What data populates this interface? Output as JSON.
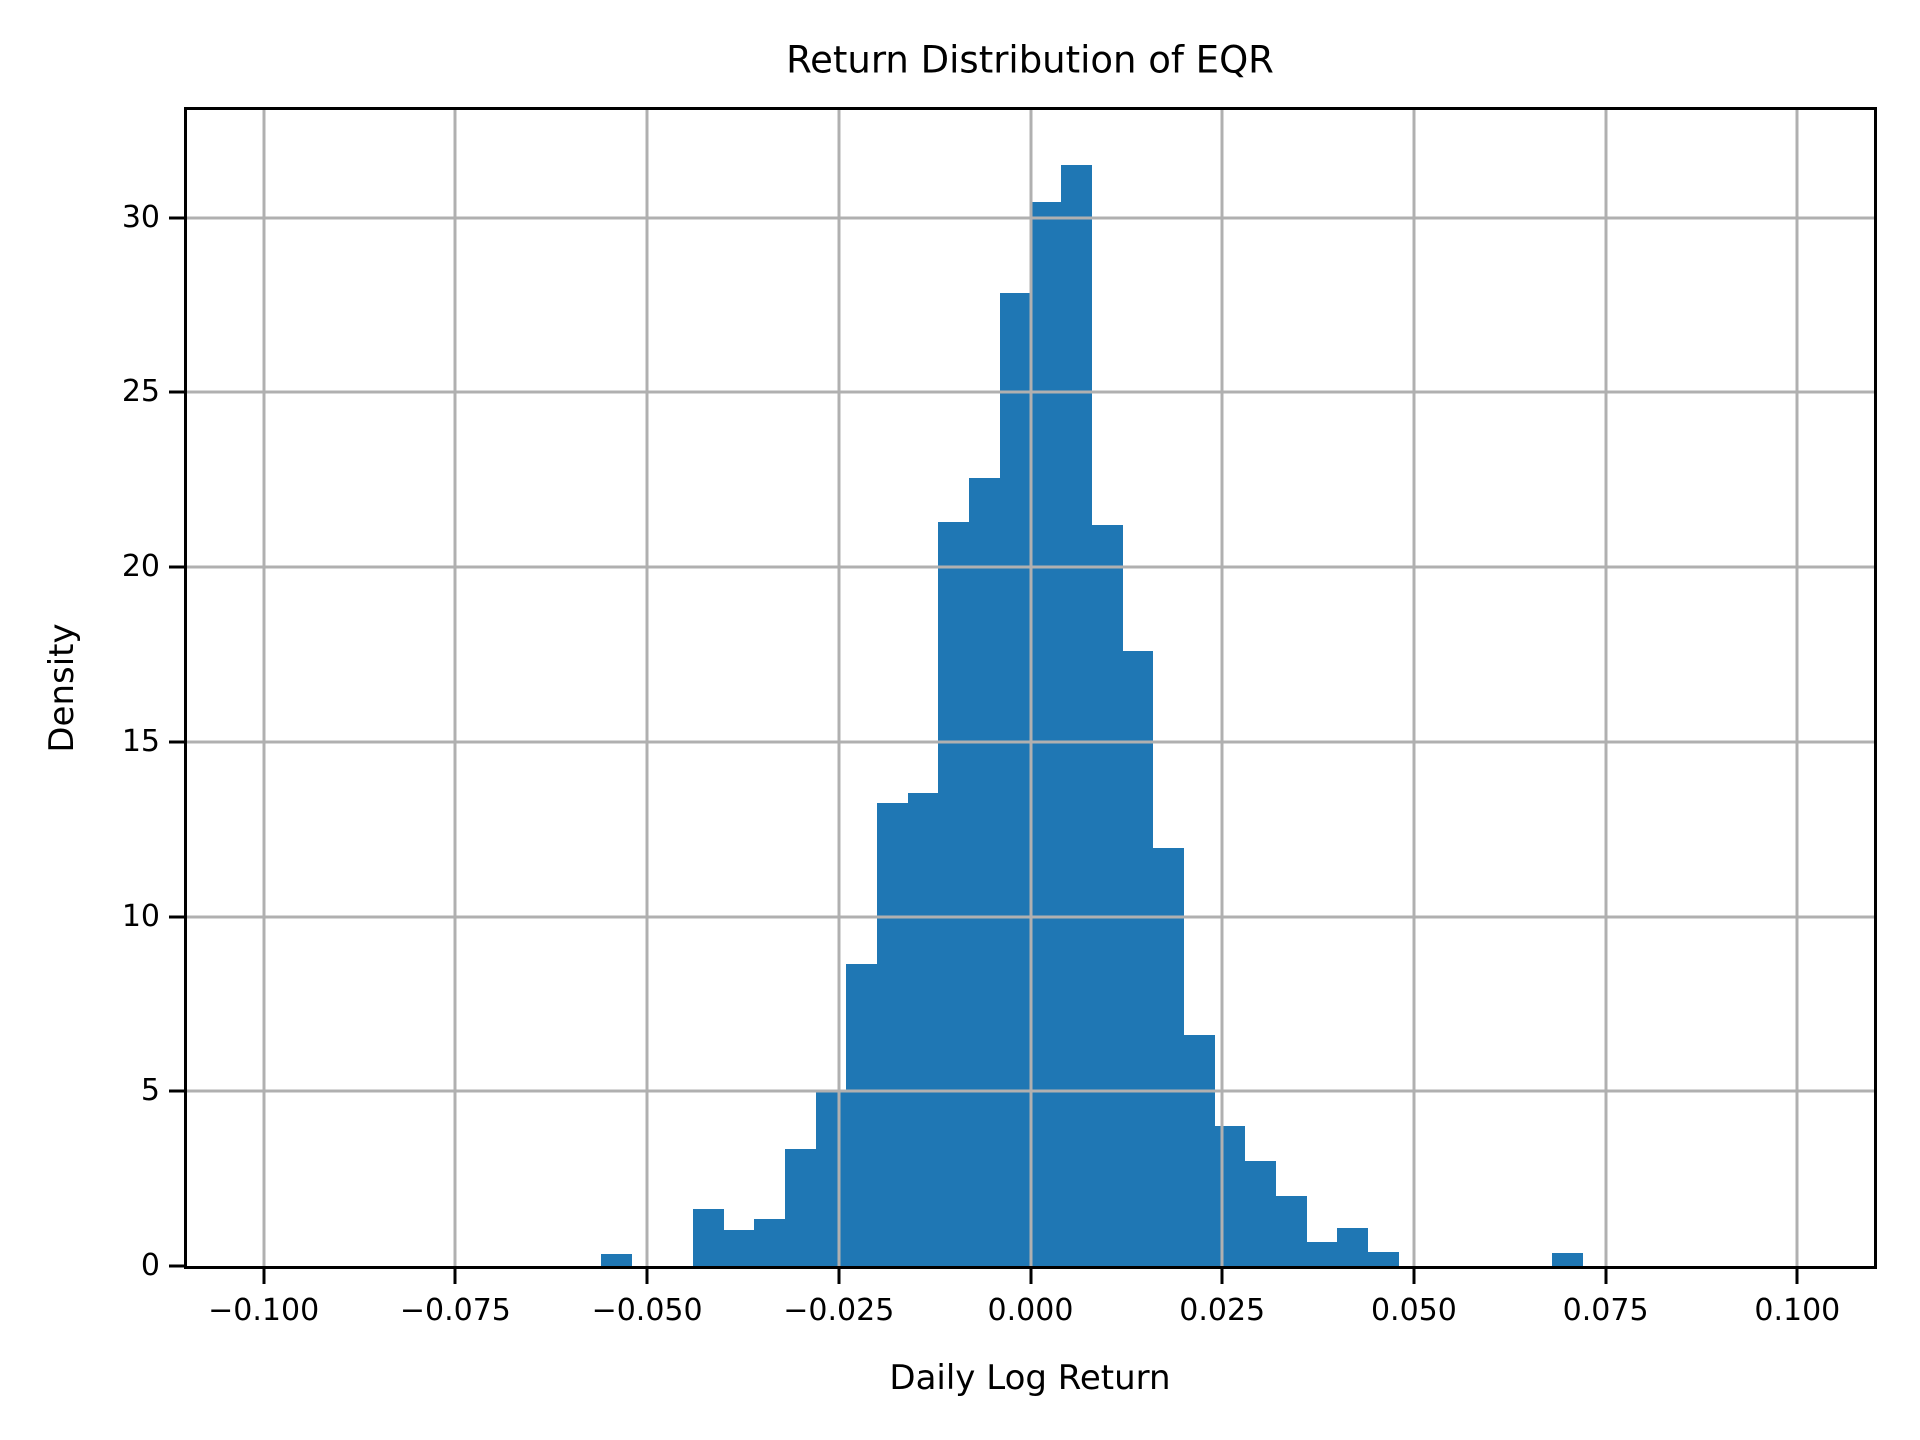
{
  "title": "Return Distribution of EQR",
  "chart_data": {
    "type": "bar",
    "subtype": "histogram",
    "title": "Return Distribution of EQR",
    "xlabel": "Daily Log Return",
    "ylabel": "Density",
    "xlim": [
      -0.11,
      0.11
    ],
    "ylim": [
      0,
      33.08
    ],
    "grid": true,
    "legend": false,
    "bar_color": "#1f77b4",
    "grid_color": "#b0b0b0",
    "spine_color": "#000000",
    "bin_width": 0.004,
    "x_ticks": [
      {
        "value": -0.1,
        "label": "−0.100"
      },
      {
        "value": -0.075,
        "label": "−0.075"
      },
      {
        "value": -0.05,
        "label": "−0.050"
      },
      {
        "value": -0.025,
        "label": "−0.025"
      },
      {
        "value": 0.0,
        "label": "0.000"
      },
      {
        "value": 0.025,
        "label": "0.025"
      },
      {
        "value": 0.05,
        "label": "0.050"
      },
      {
        "value": 0.075,
        "label": "0.075"
      },
      {
        "value": 0.1,
        "label": "0.100"
      }
    ],
    "y_ticks": [
      {
        "value": 0,
        "label": "0"
      },
      {
        "value": 5,
        "label": "5"
      },
      {
        "value": 10,
        "label": "10"
      },
      {
        "value": 15,
        "label": "15"
      },
      {
        "value": 20,
        "label": "20"
      },
      {
        "value": 25,
        "label": "25"
      },
      {
        "value": 30,
        "label": "30"
      }
    ],
    "bins": [
      {
        "x": -0.056,
        "density": 0.33
      },
      {
        "x": -0.044,
        "density": 1.63
      },
      {
        "x": -0.04,
        "density": 1.03
      },
      {
        "x": -0.036,
        "density": 1.35
      },
      {
        "x": -0.032,
        "density": 3.35
      },
      {
        "x": -0.028,
        "density": 5.0
      },
      {
        "x": -0.024,
        "density": 8.65
      },
      {
        "x": -0.02,
        "density": 13.25
      },
      {
        "x": -0.016,
        "density": 13.55
      },
      {
        "x": -0.012,
        "density": 21.3
      },
      {
        "x": -0.008,
        "density": 22.55
      },
      {
        "x": -0.004,
        "density": 27.85
      },
      {
        "x": 0.0,
        "density": 30.45
      },
      {
        "x": 0.004,
        "density": 31.5
      },
      {
        "x": 0.008,
        "density": 21.2
      },
      {
        "x": 0.012,
        "density": 17.6
      },
      {
        "x": 0.016,
        "density": 11.95
      },
      {
        "x": 0.02,
        "density": 6.6
      },
      {
        "x": 0.024,
        "density": 4.0
      },
      {
        "x": 0.028,
        "density": 3.0
      },
      {
        "x": 0.032,
        "density": 2.0
      },
      {
        "x": 0.036,
        "density": 0.7
      },
      {
        "x": 0.04,
        "density": 1.1
      },
      {
        "x": 0.044,
        "density": 0.4
      },
      {
        "x": 0.068,
        "density": 0.37
      }
    ]
  }
}
